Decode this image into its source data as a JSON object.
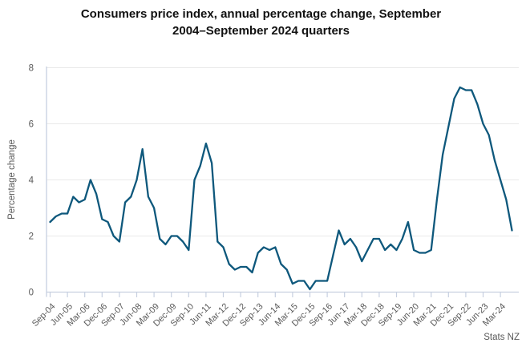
{
  "title_lines": [
    "Consumers price index, annual percentage change, September",
    "2004–September 2024 quarters"
  ],
  "source": "Stats NZ",
  "colors": {
    "line": "#0e587c",
    "grid": "#e9e9e9",
    "axis": "#c7d0e0",
    "tick_text": "#595959",
    "title_text": "#111111"
  },
  "chart_data": {
    "type": "line",
    "title": "Consumers price index, annual percentage change, September 2004–September 2024 quarters",
    "xlabel": "",
    "ylabel": "Percentage change",
    "ylim": [
      0,
      8
    ],
    "yticks": [
      0,
      2,
      4,
      6,
      8
    ],
    "grid": "horizontal gridlines only",
    "legend": "none",
    "x_start": "Sep-04",
    "x_end": "Sep-24",
    "frequency": "quarterly",
    "x_tick_interval_quarters": 3,
    "x_tick_labels": [
      "Sep-04",
      "Jun-05",
      "Mar-06",
      "Dec-06",
      "Sep-07",
      "Jun-08",
      "Mar-09",
      "Dec-09",
      "Sep-10",
      "Jun-11",
      "Mar-12",
      "Dec-12",
      "Sep-13",
      "Jun-14",
      "Mar-15",
      "Dec-15",
      "Sep-16",
      "Jun-17",
      "Mar-18",
      "Dec-18",
      "Sep-19",
      "Jun-20",
      "Mar-21",
      "Dec-21",
      "Sep-22",
      "Jun-23",
      "Mar-24"
    ],
    "series": [
      {
        "name": "CPI annual percentage change",
        "color": "#0e587c",
        "values": [
          2.5,
          2.7,
          2.8,
          2.8,
          3.4,
          3.2,
          3.3,
          4.0,
          3.5,
          2.6,
          2.5,
          2.0,
          1.8,
          3.2,
          3.4,
          4.0,
          5.1,
          3.4,
          3.0,
          1.9,
          1.7,
          2.0,
          2.0,
          1.8,
          1.5,
          4.0,
          4.5,
          5.3,
          4.6,
          1.8,
          1.6,
          1.0,
          0.8,
          0.9,
          0.9,
          0.7,
          1.4,
          1.6,
          1.5,
          1.6,
          1.0,
          0.8,
          0.3,
          0.4,
          0.4,
          0.1,
          0.4,
          0.4,
          0.4,
          1.3,
          2.2,
          1.7,
          1.9,
          1.6,
          1.1,
          1.5,
          1.9,
          1.9,
          1.5,
          1.7,
          1.5,
          1.9,
          2.5,
          1.5,
          1.4,
          1.4,
          1.5,
          3.3,
          4.9,
          5.9,
          6.9,
          7.3,
          7.2,
          7.2,
          6.7,
          6.0,
          5.6,
          4.7,
          4.0,
          3.3,
          2.2
        ]
      }
    ]
  }
}
